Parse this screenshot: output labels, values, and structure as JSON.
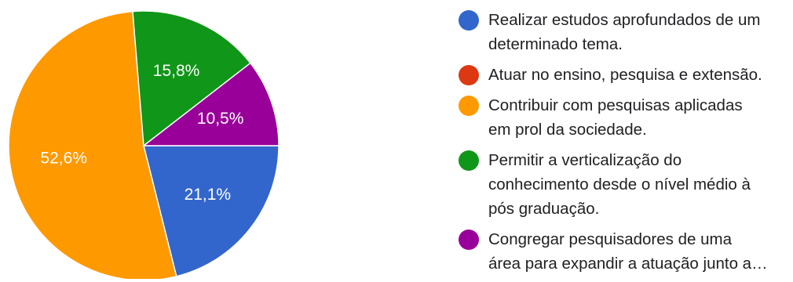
{
  "chart_data": {
    "type": "pie",
    "slices": [
      {
        "label": "Realizar estudos aprofundados de um\ndeterminado tema.",
        "value": 21.1,
        "display": "21,1%",
        "color": "#3366cc"
      },
      {
        "label": "Atuar no ensino, pesquisa e extensão.",
        "value": 0,
        "display": "",
        "color": "#dc3912"
      },
      {
        "label": "Contribuir com pesquisas aplicadas\nem prol da sociedade.",
        "value": 52.6,
        "display": "52,6%",
        "color": "#ff9900"
      },
      {
        "label": "Permitir a verticalização do\nconhecimento desde o nível médio à\npós graduação.",
        "value": 15.8,
        "display": "15,8%",
        "color": "#109618"
      },
      {
        "label": "Congregar pesquisadores de uma\nárea para expandir a atuação junto a…",
        "value": 10.5,
        "display": "10,5%",
        "color": "#990099"
      }
    ],
    "start_angle_deg": 90,
    "direction": "clockwise",
    "legend_position": "right"
  }
}
